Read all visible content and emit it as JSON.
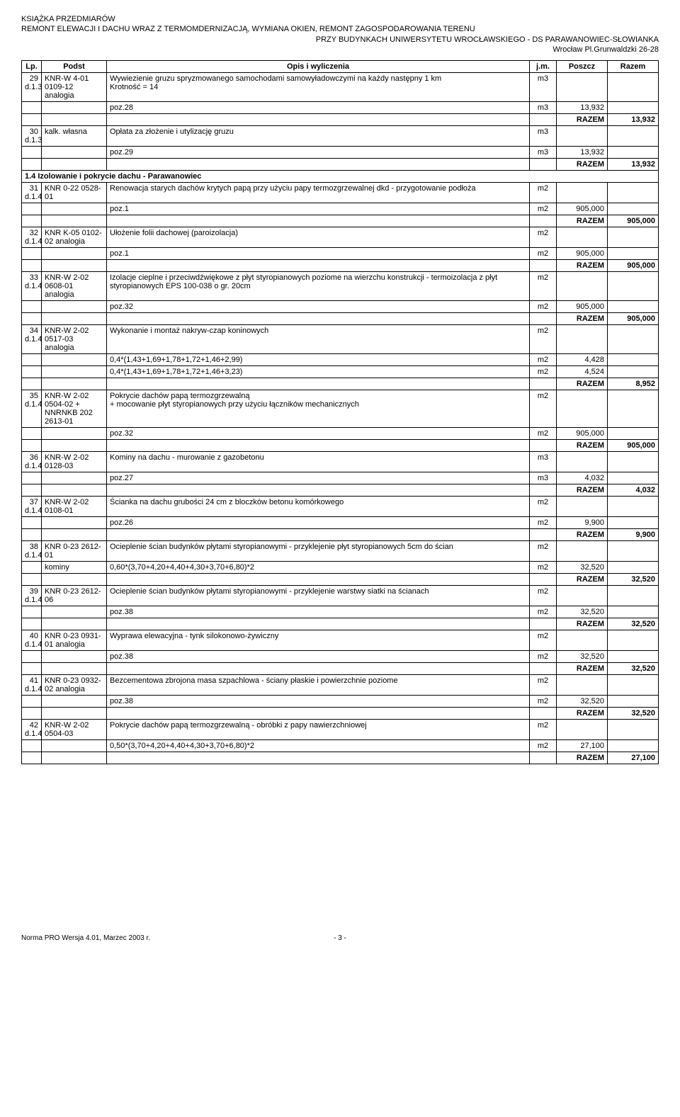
{
  "header": {
    "line1": "KSIĄŻKA PRZEDMIARÓW",
    "line2": "REMONT ELEWACJI I DACHU WRAZ Z TERMOMDERNIZACJĄ, WYMIANA OKIEN, REMONT ZAGOSPODAROWANIA TERENU",
    "line3": "PRZY BUDYNKACH UNIWERSYTETU WROCŁAWSKIEGO - DS PARAWANOWIEC-SŁOWIANKA",
    "line4": "Wrocław Pl.Grunwaldzki 26-28"
  },
  "columns": {
    "lp": "Lp.",
    "podst": "Podst",
    "opis": "Opis i wyliczenia",
    "jm": "j.m.",
    "poszcz": "Poszcz",
    "razem": "Razem"
  },
  "rows": [
    {
      "type": "item",
      "lp": "29",
      "sub": "d.1.3",
      "podst": "KNR-W 4-01 0109-12 analogia",
      "opis": "Wywiezienie gruzu spryzmowanego samochodami samowyładowczymi na każdy następny 1 km\nKrotność = 14",
      "jm": "m3"
    },
    {
      "type": "calc",
      "opis": "poz.28",
      "jm": "m3",
      "poszcz": "13,932"
    },
    {
      "type": "razem",
      "label": "RAZEM",
      "val": "13,932"
    },
    {
      "type": "item",
      "lp": "30",
      "sub": "d.1.3",
      "podst": "kalk. własna",
      "opis": "Opłata za złożenie i utylizację gruzu",
      "jm": "m3"
    },
    {
      "type": "calc",
      "opis": "poz.29",
      "jm": "m3",
      "poszcz": "13,932"
    },
    {
      "type": "razem",
      "label": "RAZEM",
      "val": "13,932"
    },
    {
      "type": "section",
      "text": "1.4 Izolowanie i pokrycie dachu - Parawanowiec"
    },
    {
      "type": "item",
      "lp": "31",
      "sub": "d.1.4",
      "podst": "KNR 0-22 0528-01",
      "opis": "Renowacja starych dachów krytych papą przy użyciu papy termozgrzewalnej dkd - przygotowanie podłoża",
      "jm": "m2"
    },
    {
      "type": "calc",
      "opis": "poz.1",
      "jm": "m2",
      "poszcz": "905,000"
    },
    {
      "type": "razem",
      "label": "RAZEM",
      "val": "905,000"
    },
    {
      "type": "item",
      "lp": "32",
      "sub": "d.1.4",
      "podst": "KNR K-05 0102-02 analogia",
      "opis": "Ułożenie folii dachowej (paroizolacja)",
      "jm": "m2"
    },
    {
      "type": "calc",
      "opis": "poz.1",
      "jm": "m2",
      "poszcz": "905,000"
    },
    {
      "type": "razem",
      "label": "RAZEM",
      "val": "905,000"
    },
    {
      "type": "item",
      "lp": "33",
      "sub": "d.1.4",
      "podst": "KNR-W 2-02 0608-01 analogia",
      "opis": "Izolacje cieplne i przeciwdźwiękowe z płyt styropianowych poziome na wierzchu konstrukcji - termoizolacja z płyt styropianowych EPS 100-038 o gr. 20cm",
      "jm": "m2"
    },
    {
      "type": "calc",
      "opis": "poz.32",
      "jm": "m2",
      "poszcz": "905,000"
    },
    {
      "type": "razem",
      "label": "RAZEM",
      "val": "905,000"
    },
    {
      "type": "item",
      "lp": "34",
      "sub": "d.1.4",
      "podst": "KNR-W 2-02 0517-03 analogia",
      "opis": "Wykonanie i montaż nakryw-czap koninowych",
      "jm": "m2"
    },
    {
      "type": "calc",
      "opis": "0,4*(1,43+1,69+1,78+1,72+1,46+2,99)",
      "jm": "m2",
      "poszcz": "4,428"
    },
    {
      "type": "calc",
      "opis": "0,4*(1,43+1,69+1,78+1,72+1,46+3,23)",
      "jm": "m2",
      "poszcz": "4,524"
    },
    {
      "type": "razem",
      "label": "RAZEM",
      "val": "8,952"
    },
    {
      "type": "item",
      "lp": "35",
      "sub": "d.1.4",
      "podst": "KNR-W 2-02 0504-02 + NNRNKB 202 2613-01",
      "opis": "Pokrycie dachów papą termozgrzewalną\n+ mocowanie płyt styropianowych przy użyciu łączników mechanicznych",
      "jm": "m2"
    },
    {
      "type": "calc",
      "opis": "poz.32",
      "jm": "m2",
      "poszcz": "905,000"
    },
    {
      "type": "razem",
      "label": "RAZEM",
      "val": "905,000"
    },
    {
      "type": "item",
      "lp": "36",
      "sub": "d.1.4",
      "podst": "KNR-W 2-02 0128-03",
      "opis": "Kominy na dachu - murowanie z gazobetonu",
      "jm": "m3"
    },
    {
      "type": "calc",
      "opis": "poz.27",
      "jm": "m3",
      "poszcz": "4,032"
    },
    {
      "type": "razem",
      "label": "RAZEM",
      "val": "4,032"
    },
    {
      "type": "item",
      "lp": "37",
      "sub": "d.1.4",
      "podst": "KNR-W 2-02 0108-01",
      "opis": "Ścianka na dachu grubości 24 cm z bloczków betonu komórkowego",
      "jm": "m2"
    },
    {
      "type": "calc",
      "opis": "poz.26",
      "jm": "m2",
      "poszcz": "9,900"
    },
    {
      "type": "razem",
      "label": "RAZEM",
      "val": "9,900"
    },
    {
      "type": "item",
      "lp": "38",
      "sub": "d.1.4",
      "podst": "KNR 0-23 2612-01",
      "opis": "Ocieplenie ścian budynków płytami styropianowymi - przyklejenie płyt styropianowych 5cm do ścian",
      "jm": "m2"
    },
    {
      "type": "calc",
      "podst": "kominy",
      "opis": "0,60*(3,70+4,20+4,40+4,30+3,70+6,80)*2",
      "jm": "m2",
      "poszcz": "32,520"
    },
    {
      "type": "razem",
      "label": "RAZEM",
      "val": "32,520"
    },
    {
      "type": "item",
      "lp": "39",
      "sub": "d.1.4",
      "podst": "KNR 0-23 2612-06",
      "opis": "Ocieplenie ścian budynków płytami styropianowymi - przyklejenie warstwy siatki na ścianach",
      "jm": "m2"
    },
    {
      "type": "calc",
      "opis": "poz.38",
      "jm": "m2",
      "poszcz": "32,520"
    },
    {
      "type": "razem",
      "label": "RAZEM",
      "val": "32,520"
    },
    {
      "type": "item",
      "lp": "40",
      "sub": "d.1.4",
      "podst": "KNR 0-23 0931-01 analogia",
      "opis": "Wyprawa elewacyjna - tynk silokonowo-żywiczny",
      "jm": "m2"
    },
    {
      "type": "calc",
      "opis": "poz.38",
      "jm": "m2",
      "poszcz": "32,520"
    },
    {
      "type": "razem",
      "label": "RAZEM",
      "val": "32,520"
    },
    {
      "type": "item",
      "lp": "41",
      "sub": "d.1.4",
      "podst": "KNR 0-23 0932-02 analogia",
      "opis": "Bezcementowa zbrojona masa szpachlowa - ściany płaskie i powierzchnie poziome",
      "jm": "m2"
    },
    {
      "type": "calc",
      "opis": "poz.38",
      "jm": "m2",
      "poszcz": "32,520"
    },
    {
      "type": "razem",
      "label": "RAZEM",
      "val": "32,520"
    },
    {
      "type": "item",
      "lp": "42",
      "sub": "d.1.4",
      "podst": "KNR-W 2-02 0504-03",
      "opis": "Pokrycie dachów papą termozgrzewalną - obróbki z papy nawierzchniowej",
      "jm": "m2"
    },
    {
      "type": "calc",
      "opis": "0,50*(3,70+4,20+4,40+4,30+3,70+6,80)*2",
      "jm": "m2",
      "poszcz": "27,100"
    },
    {
      "type": "razem",
      "label": "RAZEM",
      "val": "27,100"
    }
  ],
  "footer": {
    "left": "Norma PRO Wersja 4.01, Marzec 2003 r.",
    "page": "- 3 -"
  }
}
